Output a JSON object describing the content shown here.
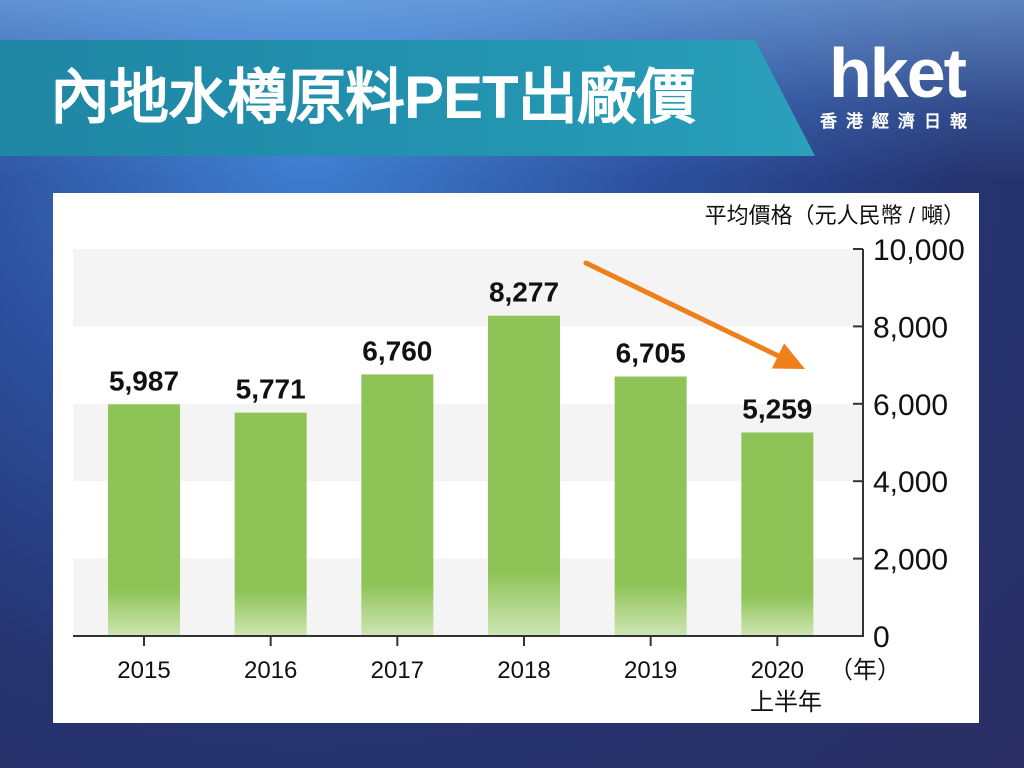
{
  "header": {
    "title": "內地水樽原料PET出廠價",
    "logo_main": "hket",
    "logo_sub": "香港經濟日報"
  },
  "colors": {
    "bar": "#8dc357",
    "arrow": "#ee7f1a",
    "title_band": "#2496b2"
  },
  "chart_data": {
    "type": "bar",
    "categories": [
      "2015",
      "2016",
      "2017",
      "2018",
      "2019",
      "2020"
    ],
    "category_sublabels": [
      "",
      "",
      "",
      "",
      "",
      "上半年"
    ],
    "values": [
      5987,
      5771,
      6760,
      8277,
      6705,
      5259
    ],
    "value_labels": [
      "5,987",
      "5,771",
      "6,760",
      "8,277",
      "6,705",
      "5,259"
    ],
    "ylabel": "平均價格（元人民幣 / 噸）",
    "xlabel": "（年）",
    "ylim": [
      0,
      10000
    ],
    "yticks": [
      0,
      2000,
      4000,
      6000,
      8000,
      10000
    ],
    "ytick_labels": [
      "0",
      "2,000",
      "4,000",
      "6,000",
      "8,000",
      "10,000"
    ],
    "y_axis_position": "right",
    "grid": "alternating horizontal bands",
    "annotation": "downward trend arrow from 2018 to 2020"
  }
}
